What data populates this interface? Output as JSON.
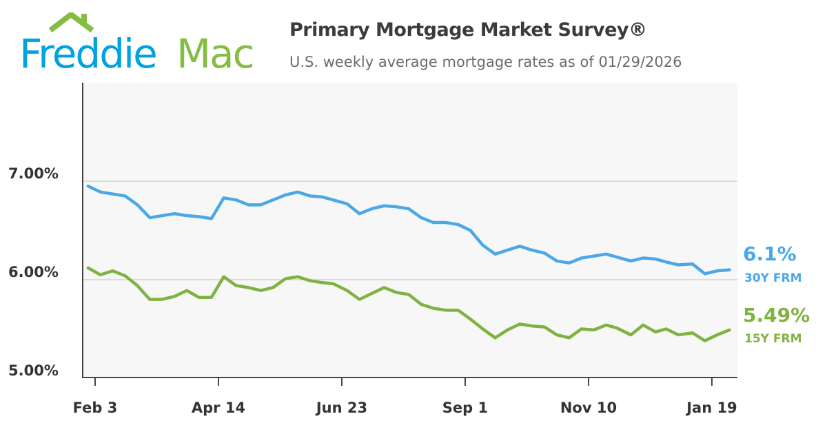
{
  "header": {
    "logo_text": "FreddieMac",
    "logo_part1": "Freddie",
    "logo_part2": "Mac",
    "title": "Primary Mortgage Market Survey®",
    "subtitle": "U.S. weekly average mortgage rates as of 01/29/2026"
  },
  "colors": {
    "brand_blue": "#00a3e0",
    "brand_green": "#84bd41",
    "series_30y": "#4aa8e8",
    "series_15y": "#7fb241"
  },
  "chart_data": {
    "type": "line",
    "title": "Primary Mortgage Market Survey®",
    "subtitle": "U.S. weekly average mortgage rates as of 01/29/2026",
    "x": [
      "2025-01-30",
      "2025-02-06",
      "2025-02-13",
      "2025-02-20",
      "2025-02-27",
      "2025-03-06",
      "2025-03-13",
      "2025-03-20",
      "2025-03-27",
      "2025-04-03",
      "2025-04-10",
      "2025-04-17",
      "2025-04-24",
      "2025-05-01",
      "2025-05-08",
      "2025-05-15",
      "2025-05-22",
      "2025-05-29",
      "2025-06-05",
      "2025-06-12",
      "2025-06-18",
      "2025-06-26",
      "2025-07-03",
      "2025-07-10",
      "2025-07-17",
      "2025-07-24",
      "2025-07-31",
      "2025-08-07",
      "2025-08-14",
      "2025-08-21",
      "2025-08-28",
      "2025-09-04",
      "2025-09-11",
      "2025-09-18",
      "2025-09-25",
      "2025-10-02",
      "2025-10-09",
      "2025-10-16",
      "2025-10-23",
      "2025-10-30",
      "2025-11-06",
      "2025-11-13",
      "2025-11-20",
      "2025-11-26",
      "2025-12-04",
      "2025-12-11",
      "2025-12-18",
      "2025-12-24",
      "2025-12-31",
      "2026-01-08",
      "2026-01-15",
      "2026-01-22",
      "2026-01-29"
    ],
    "series": [
      {
        "name": "30Y FRM",
        "color": "#4aa8e8",
        "last_label": "6.1%",
        "values": [
          6.95,
          6.89,
          6.87,
          6.85,
          6.76,
          6.63,
          6.65,
          6.67,
          6.65,
          6.64,
          6.62,
          6.83,
          6.81,
          6.76,
          6.76,
          6.81,
          6.86,
          6.89,
          6.85,
          6.84,
          6.81,
          6.77,
          6.67,
          6.72,
          6.75,
          6.74,
          6.72,
          6.63,
          6.58,
          6.58,
          6.56,
          6.5,
          6.35,
          6.26,
          6.3,
          6.34,
          6.3,
          6.27,
          6.19,
          6.17,
          6.22,
          6.24,
          6.26,
          6.23,
          6.19,
          6.22,
          6.21,
          6.18,
          6.15,
          6.16,
          6.06,
          6.09,
          6.1
        ]
      },
      {
        "name": "15Y FRM",
        "color": "#7fb241",
        "last_label": "5.49%",
        "values": [
          6.12,
          6.05,
          6.09,
          6.04,
          5.94,
          5.8,
          5.8,
          5.83,
          5.89,
          5.82,
          5.82,
          6.03,
          5.94,
          5.92,
          5.89,
          5.92,
          6.01,
          6.03,
          5.99,
          5.97,
          5.96,
          5.89,
          5.8,
          5.86,
          5.92,
          5.87,
          5.85,
          5.75,
          5.71,
          5.69,
          5.69,
          5.6,
          5.5,
          5.41,
          5.49,
          5.55,
          5.53,
          5.52,
          5.44,
          5.41,
          5.5,
          5.49,
          5.54,
          5.51,
          5.44,
          5.54,
          5.47,
          5.5,
          5.44,
          5.46,
          5.38,
          5.44,
          5.49
        ]
      }
    ],
    "x_ticks": [
      {
        "label": "Feb 3",
        "date": "2025-02-03"
      },
      {
        "label": "Apr 14",
        "date": "2025-04-14"
      },
      {
        "label": "Jun 23",
        "date": "2025-06-23"
      },
      {
        "label": "Sep 1",
        "date": "2025-09-01"
      },
      {
        "label": "Nov 10",
        "date": "2025-11-10"
      },
      {
        "label": "Jan 19",
        "date": "2026-01-19"
      }
    ],
    "y_ticks": [
      {
        "label": "7.00%",
        "value": 7.0
      },
      {
        "label": "6.00%",
        "value": 6.0
      },
      {
        "label": "5.00%",
        "value": 5.0
      }
    ],
    "ylim": [
      5.0,
      7.99
    ],
    "grid": true,
    "legend": "right end labels"
  }
}
